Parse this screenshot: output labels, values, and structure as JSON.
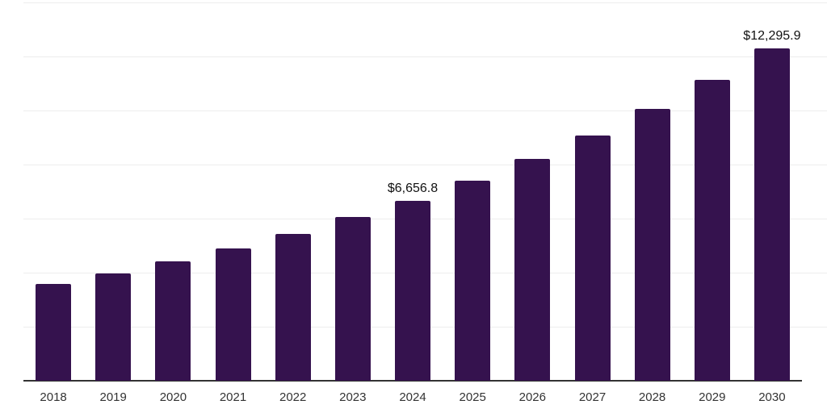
{
  "chart_data": {
    "type": "bar",
    "title": "",
    "xlabel": "",
    "ylabel": "",
    "categories": [
      "2018",
      "2019",
      "2020",
      "2021",
      "2022",
      "2023",
      "2024",
      "2025",
      "2026",
      "2027",
      "2028",
      "2029",
      "2030"
    ],
    "values": [
      3580,
      3970,
      4430,
      4900,
      5430,
      6050,
      6656.8,
      7410,
      8220,
      9090,
      10060,
      11140,
      12295.9
    ],
    "data_labels": [
      {
        "category": "2024",
        "text": "$6,656.8"
      },
      {
        "category": "2030",
        "text": "$12,295.9"
      }
    ],
    "ylim": [
      0,
      14000
    ],
    "grid_step": 2000,
    "grid": true,
    "legend": false,
    "y_axis_ticks_visible": false,
    "colors": {
      "bar": "#35124E",
      "gridline": "#ededed",
      "axis_line": "#333333",
      "tick_label": "#333333",
      "data_label": "#111111",
      "background": "#ffffff"
    }
  }
}
